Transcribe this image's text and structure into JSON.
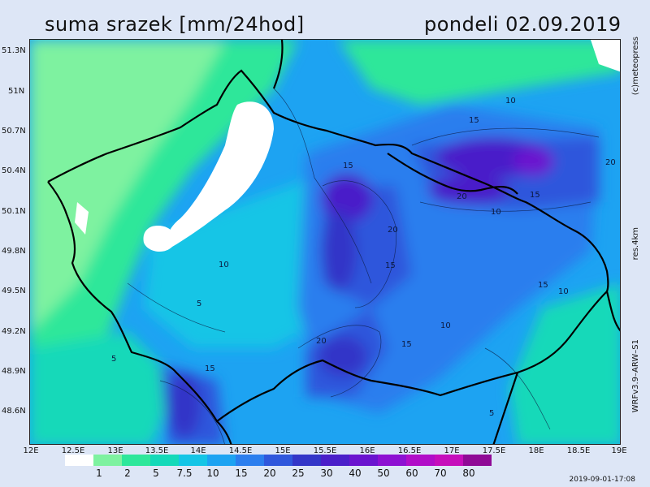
{
  "header": {
    "title": "suma srazek [mm/24hod]",
    "date": "pondeli 02.09.2019"
  },
  "side_labels": {
    "credit": "(c)meteopress",
    "resolution": "res.4km",
    "model": "WRFv3.9–ARW–S1"
  },
  "timestamp": "2019-09-01-17:08",
  "lat_labels": [
    "51.3N",
    "51N",
    "50.7N",
    "50.4N",
    "50.1N",
    "49.8N",
    "49.5N",
    "49.2N",
    "48.9N",
    "48.6N"
  ],
  "lon_labels": [
    "12E",
    "12.5E",
    "13E",
    "13.5E",
    "14E",
    "14.5E",
    "15E",
    "15.5E",
    "16E",
    "16.5E",
    "17E",
    "17.5E",
    "18E",
    "18.5E",
    "19E"
  ],
  "legend": {
    "levels": [
      "1",
      "2",
      "5",
      "7.5",
      "10",
      "15",
      "20",
      "25",
      "30",
      "40",
      "50",
      "60",
      "70",
      "80"
    ],
    "colors": [
      "#ffffff",
      "#7ef2a0",
      "#2ee79a",
      "#14d9b9",
      "#14c5e6",
      "#1da3f2",
      "#2b7eee",
      "#2f57dc",
      "#3336c8",
      "#4a1fc9",
      "#6a14cf",
      "#8d10d2",
      "#b10dc8",
      "#c60ebb",
      "#8f0a96"
    ]
  },
  "contour_labels": [
    "5",
    "5",
    "5",
    "10",
    "10",
    "10",
    "10",
    "15",
    "15",
    "15",
    "15",
    "15",
    "15",
    "15",
    "20",
    "20",
    "20",
    "20",
    "10",
    "5"
  ]
}
